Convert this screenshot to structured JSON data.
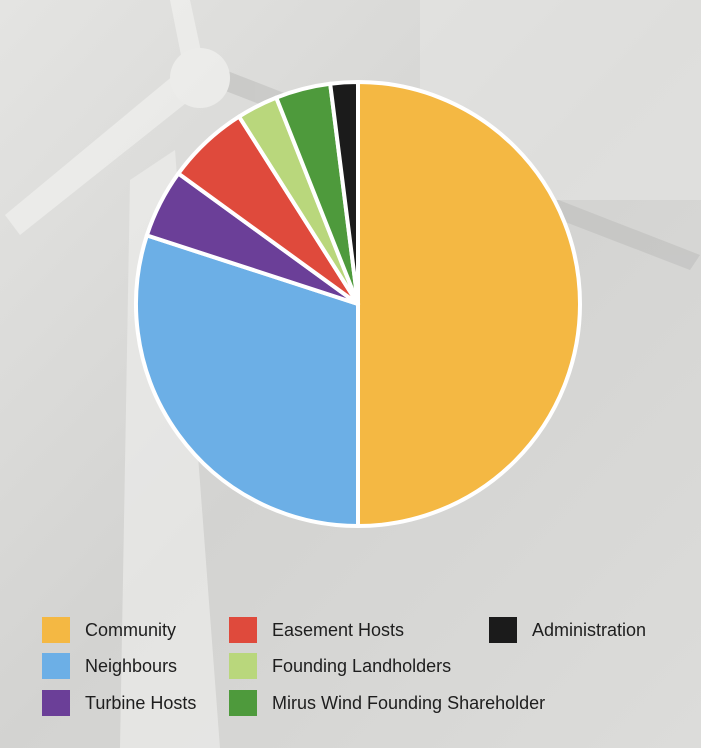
{
  "chart_data": {
    "type": "pie",
    "categories": [
      "Community",
      "Neighbours",
      "Turbine Hosts",
      "Easement Hosts",
      "Founding Landholders",
      "Mirus Wind Founding Shareholder",
      "Administration"
    ],
    "values": [
      50,
      30,
      5,
      6,
      3,
      4,
      2
    ],
    "colors": [
      "#f4b843",
      "#6cafe6",
      "#6b3f98",
      "#df4a3c",
      "#b9d77c",
      "#4e9a3c",
      "#1b1b1b"
    ]
  }
}
